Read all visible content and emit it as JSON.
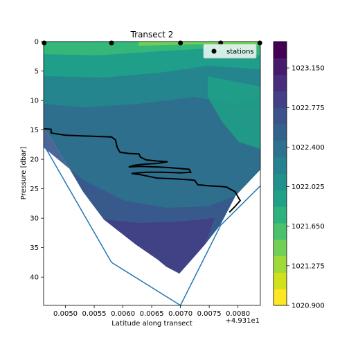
{
  "chart_data": {
    "type": "contour",
    "title": "Transect 2",
    "xlabel": "Latitude along transect",
    "ylabel": "Pressure [dbar]",
    "x_offset_label": "+4.931e1",
    "x_ticks": [
      "0.0050",
      "0.0055",
      "0.0060",
      "0.0065",
      "0.0070",
      "0.0075",
      "0.0080"
    ],
    "x_tick_values": [
      0.005,
      0.0055,
      0.006,
      0.0065,
      0.007,
      0.0075,
      0.008
    ],
    "xlim": [
      0.00462,
      0.00839
    ],
    "y_ticks": [
      "0",
      "5",
      "10",
      "15",
      "20",
      "25",
      "30",
      "35",
      "40"
    ],
    "y_tick_values": [
      0,
      5,
      10,
      15,
      20,
      25,
      30,
      35,
      40
    ],
    "ylim": [
      44.8,
      0
    ],
    "colorbar": {
      "min": 1020.9,
      "max": 1023.4,
      "ticks": [
        "1020.900",
        "1021.275",
        "1021.650",
        "1022.025",
        "1022.400",
        "1022.775",
        "1023.150"
      ],
      "tick_values": [
        1020.9,
        1021.275,
        1021.65,
        1022.025,
        1022.4,
        1022.775,
        1023.15
      ],
      "levels": 20,
      "colormap": "viridis"
    },
    "legend": {
      "label": "stations",
      "placement": "top-right"
    },
    "stations_x": [
      0.00463,
      0.0058,
      0.007,
      0.0077,
      0.00838
    ],
    "bottom_outline": {
      "x": [
        0.00462,
        0.0058,
        0.007,
        0.0077,
        0.00839
      ],
      "y": [
        17.5,
        37.5,
        44.8,
        31.2,
        24.5
      ]
    },
    "isopycnal_contour": {
      "x": [
        0.00462,
        0.00475,
        0.00475,
        0.0048,
        0.005,
        0.0055,
        0.0058,
        0.00587,
        0.0059,
        0.00595,
        0.0061,
        0.00628,
        0.0063,
        0.0064,
        0.0066,
        0.00678,
        0.0066,
        0.0064,
        0.0062,
        0.0061,
        0.0063,
        0.0066,
        0.0068,
        0.00715,
        0.00718,
        0.007,
        0.0067,
        0.0064,
        0.00615,
        0.0063,
        0.0066,
        0.0069,
        0.0072,
        0.00725,
        0.0073,
        0.0075,
        0.0077,
        0.0078,
        0.00795,
        0.00802,
        0.00804,
        0.00795,
        0.00785
      ],
      "y": [
        14.8,
        14.9,
        15.5,
        15.6,
        15.9,
        16.1,
        16.2,
        16.7,
        18.0,
        18.8,
        19.0,
        19.1,
        19.6,
        20.1,
        20.3,
        20.4,
        20.7,
        20.8,
        21.0,
        21.3,
        21.2,
        21.3,
        21.4,
        21.7,
        22.2,
        22.3,
        22.2,
        22.2,
        22.4,
        22.6,
        23.2,
        23.3,
        23.5,
        23.6,
        24.3,
        24.5,
        24.6,
        24.7,
        25.5,
        26.7,
        27.0,
        28.0,
        29.0
      ]
    }
  }
}
